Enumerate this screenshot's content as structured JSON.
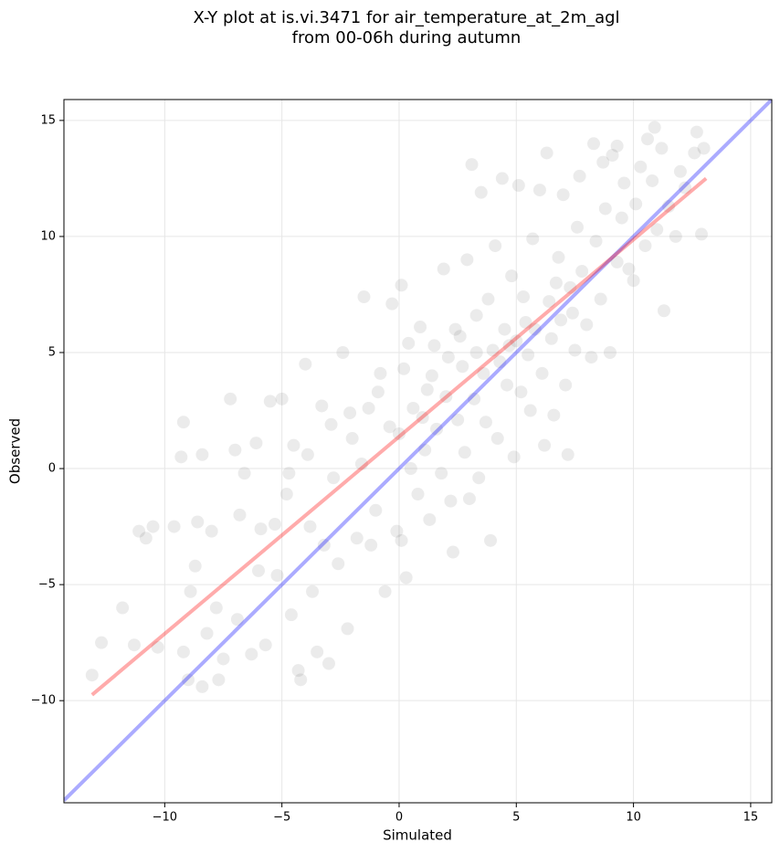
{
  "chart_data": {
    "type": "scatter",
    "title": [
      "X-Y plot at is.vi.3471 for air_temperature_at_2m_agl",
      "from 00-06h during autumn"
    ],
    "x_label": "Simulated",
    "y_label": "Observed",
    "xlim": [
      -14.3,
      15.9
    ],
    "ylim": [
      -14.4,
      15.9
    ],
    "xticks": [
      {
        "value": -10,
        "label": "−10"
      },
      {
        "value": -5,
        "label": "−5"
      },
      0,
      5,
      10,
      15
    ],
    "yticks": [
      {
        "value": -10,
        "label": "−10"
      },
      {
        "value": -5,
        "label": "−5"
      },
      0,
      5,
      10,
      15
    ],
    "grid": true,
    "series": [
      {
        "color": "#000000",
        "x": [
          -13.1,
          -12.7,
          -11.8,
          -11.3,
          -11.1,
          -10.8,
          -10.5,
          -10.3,
          -9.6,
          -9.3,
          -9.2,
          -9.2,
          -9.0,
          -8.9,
          -8.7,
          -8.6,
          -8.4,
          -8.4,
          -8.2,
          -8.0,
          -7.8,
          -7.7,
          -7.5,
          -7.2,
          -7.0,
          -6.9,
          -6.6,
          -6.3,
          -6.1,
          -6.0,
          -5.9,
          -5.7,
          -5.5,
          -5.2,
          -5.0,
          -4.8,
          -4.6,
          -4.5,
          -4.3,
          -4.2,
          -4.0,
          -3.8,
          -3.7,
          -3.5,
          -3.3,
          -3.2,
          -3.0,
          -2.8,
          -2.6,
          -2.4,
          -2.2,
          -2.0,
          -1.8,
          -1.5,
          -1.3,
          -1.2,
          -1.0,
          -0.8,
          -0.6,
          -0.4,
          -0.3,
          -0.1,
          0.1,
          0.1,
          0.2,
          0.3,
          0.5,
          0.6,
          0.8,
          0.9,
          1.1,
          1.2,
          1.3,
          1.5,
          1.6,
          1.8,
          1.9,
          2.0,
          2.2,
          2.3,
          2.4,
          2.5,
          2.7,
          2.8,
          2.9,
          3.0,
          3.1,
          3.2,
          3.3,
          3.4,
          3.5,
          3.6,
          3.7,
          3.8,
          3.9,
          4.0,
          4.1,
          4.2,
          4.4,
          4.5,
          4.6,
          4.8,
          4.9,
          5.0,
          5.1,
          5.2,
          5.3,
          5.5,
          5.6,
          5.7,
          5.8,
          6.0,
          6.1,
          6.2,
          6.3,
          6.4,
          6.5,
          6.6,
          6.8,
          6.9,
          7.0,
          7.1,
          7.2,
          7.3,
          7.5,
          7.6,
          7.7,
          7.8,
          8.0,
          8.2,
          8.3,
          8.4,
          8.6,
          8.8,
          9.0,
          9.1,
          9.3,
          9.5,
          9.6,
          9.8,
          10.0,
          10.1,
          10.3,
          10.5,
          10.6,
          10.8,
          11.0,
          11.2,
          11.3,
          11.5,
          11.8,
          12.0,
          12.2,
          12.6,
          12.7,
          12.9,
          13.0,
          10.9,
          9.3,
          8.7,
          -6.8,
          -5.3,
          -4.7,
          -3.9,
          -2.9,
          -2.1,
          -1.6,
          -0.9,
          0.0,
          0.4,
          1.0,
          1.4,
          2.1,
          2.6,
          3.3,
          4.3,
          4.7,
          5.4,
          6.7,
          7.4
        ],
        "values": [
          -8.9,
          -7.5,
          -6.0,
          -7.6,
          -2.7,
          -3.0,
          -2.5,
          -7.7,
          -2.5,
          0.5,
          2.0,
          -7.9,
          -9.1,
          -5.3,
          -4.2,
          -2.3,
          0.6,
          -9.4,
          -7.1,
          -2.7,
          -6.0,
          -9.1,
          -8.2,
          3.0,
          0.8,
          -6.5,
          -0.2,
          -8.0,
          1.1,
          -4.4,
          -2.6,
          -7.6,
          2.9,
          -4.6,
          3.0,
          -1.1,
          -6.3,
          1.0,
          -8.7,
          -9.1,
          4.5,
          -2.5,
          -5.3,
          -7.9,
          2.7,
          -3.3,
          -8.4,
          -0.4,
          -4.1,
          5.0,
          -6.9,
          1.3,
          -3.0,
          7.4,
          2.6,
          -3.3,
          -1.8,
          4.1,
          -5.3,
          1.8,
          7.1,
          -2.7,
          -3.1,
          7.9,
          4.3,
          -4.7,
          0.0,
          2.6,
          -1.1,
          6.1,
          0.8,
          3.4,
          -2.2,
          5.3,
          1.7,
          -0.2,
          8.6,
          3.1,
          -1.4,
          -3.6,
          6.0,
          2.1,
          4.4,
          0.7,
          9.0,
          -1.3,
          13.1,
          3.0,
          6.6,
          -0.4,
          11.9,
          4.1,
          2.0,
          7.3,
          -3.1,
          5.1,
          9.6,
          1.3,
          12.5,
          6.0,
          3.6,
          8.3,
          0.5,
          5.5,
          12.2,
          3.3,
          7.4,
          4.9,
          2.5,
          9.9,
          6.0,
          12.0,
          4.1,
          1.0,
          13.6,
          7.2,
          5.6,
          2.3,
          9.1,
          6.4,
          11.8,
          3.6,
          0.6,
          7.8,
          5.1,
          10.4,
          12.6,
          8.5,
          6.2,
          4.8,
          14.0,
          9.8,
          7.3,
          11.2,
          5.0,
          13.5,
          8.9,
          10.8,
          12.3,
          8.6,
          8.1,
          11.4,
          13.0,
          9.6,
          14.2,
          12.4,
          10.3,
          13.8,
          6.8,
          11.3,
          10.0,
          12.8,
          12.1,
          13.6,
          14.5,
          10.1,
          13.8,
          14.7,
          13.9,
          13.2,
          -2.0,
          -2.4,
          -0.2,
          0.6,
          1.9,
          2.4,
          0.2,
          3.3,
          1.5,
          5.4,
          2.2,
          4.0,
          4.8,
          5.7,
          5.0,
          4.6,
          5.3,
          6.3,
          8.0,
          6.7
        ]
      }
    ],
    "lines": [
      {
        "color": "#0000ff",
        "x": [
          -14.3,
          15.9
        ],
        "values": [
          -14.3,
          15.9
        ]
      },
      {
        "color": "#ff0000",
        "x": [
          -13.1,
          13.1
        ],
        "values": [
          -9.75,
          12.5
        ]
      }
    ]
  }
}
